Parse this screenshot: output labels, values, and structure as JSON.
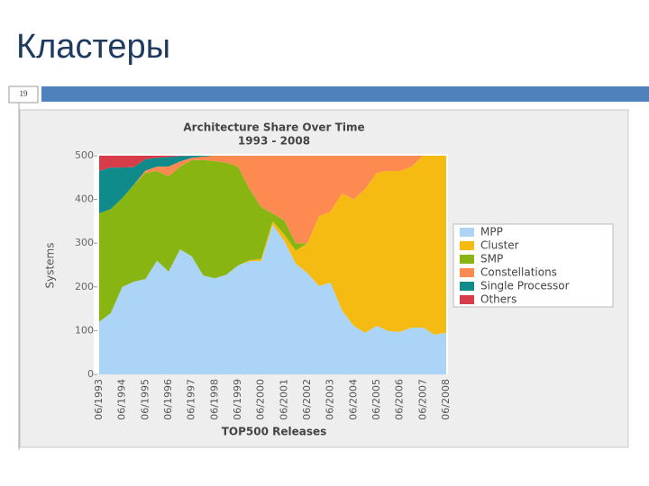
{
  "slide": {
    "title": "Кластеры",
    "number": "19"
  },
  "chart_data": {
    "type": "stacked_area",
    "title": "Architecture Share Over Time",
    "subtitle": "1993 - 2008",
    "y_label": "Systems",
    "x_label": "TOP500 Releases",
    "categories": [
      "06/1993",
      null,
      "06/1994",
      null,
      "06/1995",
      null,
      "06/1996",
      null,
      "06/1997",
      null,
      "06/1998",
      null,
      "06/1999",
      null,
      "06/2000",
      null,
      "06/2001",
      null,
      "06/2002",
      null,
      "06/2003",
      null,
      "06/2004",
      null,
      "06/2005",
      null,
      "06/2006",
      null,
      "06/2007",
      null,
      "06/2008"
    ],
    "series": [
      {
        "name": "MPP",
        "color": "#acd4f6",
        "values": [
          120,
          140,
          200,
          212,
          218,
          260,
          235,
          286,
          270,
          226,
          220,
          228,
          249,
          259,
          259,
          342,
          305,
          253,
          232,
          202,
          210,
          146,
          111,
          95,
          111,
          99,
          97,
          107,
          107,
          91,
          95
        ]
      },
      {
        "name": "Cluster",
        "color": "#f5bb13",
        "values": [
          0,
          0,
          0,
          0,
          0,
          0,
          0,
          0,
          0,
          0,
          0,
          0,
          0,
          2,
          5,
          8,
          15,
          30,
          68,
          160,
          162,
          268,
          289,
          329,
          350,
          366,
          368,
          368,
          393,
          409,
          405
        ]
      },
      {
        "name": "SMP",
        "color": "#89b512",
        "values": [
          248,
          238,
          203,
          222,
          243,
          205,
          218,
          189,
          220,
          264,
          268,
          256,
          226,
          163,
          119,
          18,
          32,
          17,
          0,
          0,
          0,
          0,
          0,
          0,
          0,
          0,
          0,
          0,
          0,
          0,
          0
        ]
      },
      {
        "name": "Constellations",
        "color": "#fd8b51",
        "values": [
          0,
          0,
          0,
          0,
          5,
          10,
          22,
          12,
          5,
          8,
          12,
          16,
          25,
          76,
          117,
          132,
          148,
          200,
          200,
          138,
          128,
          86,
          100,
          76,
          39,
          35,
          35,
          25,
          0,
          0,
          0
        ]
      },
      {
        "name": "Single Processor",
        "color": "#108b8b",
        "values": [
          97,
          95,
          70,
          40,
          26,
          20,
          22,
          12,
          5,
          2,
          0,
          0,
          0,
          0,
          0,
          0,
          0,
          0,
          0,
          0,
          0,
          0,
          0,
          0,
          0,
          0,
          0,
          0,
          0,
          0,
          0
        ]
      },
      {
        "name": "Others",
        "color": "#d63d48",
        "values": [
          35,
          27,
          27,
          26,
          8,
          5,
          3,
          1,
          0,
          0,
          0,
          0,
          0,
          0,
          0,
          0,
          0,
          0,
          0,
          0,
          0,
          0,
          0,
          0,
          0,
          0,
          0,
          0,
          0,
          0,
          0
        ]
      }
    ],
    "ylim": [
      0,
      500
    ],
    "yticks": [
      0,
      100,
      200,
      300,
      400,
      500
    ]
  }
}
